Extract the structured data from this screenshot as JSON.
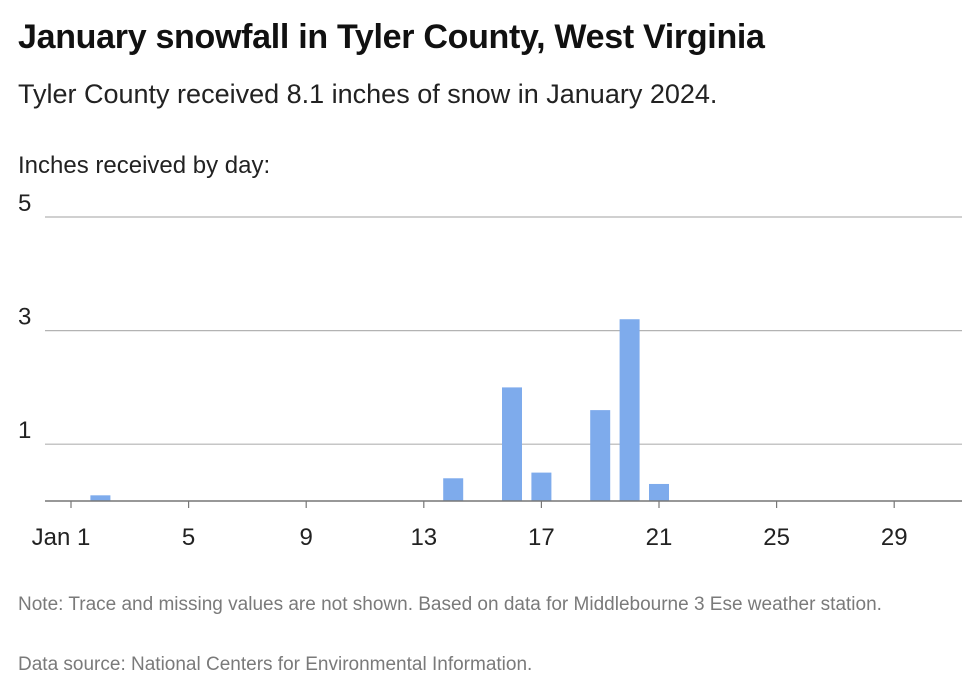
{
  "title": "January snowfall in Tyler County, West Virginia",
  "subtitle": "Tyler County received 8.1 inches of snow in January 2024.",
  "note": "Note: Trace and missing values are not shown. Based on data for Middlebourne 3 Ese weather station.",
  "source": "Data source: National Centers for Environmental Information.",
  "colors": {
    "bar": "#7eabec",
    "grid": "#b3b3b3",
    "axis": "#777777"
  },
  "chart_data": {
    "type": "bar",
    "title": "January snowfall in Tyler County, West Virginia",
    "ylabel": "Inches received by day:",
    "ylim": [
      0,
      5
    ],
    "yticks": [
      1,
      3,
      5
    ],
    "xticks": [
      {
        "day": 1,
        "label": "Jan 1"
      },
      {
        "day": 5,
        "label": "5"
      },
      {
        "day": 9,
        "label": "9"
      },
      {
        "day": 13,
        "label": "13"
      },
      {
        "day": 17,
        "label": "17"
      },
      {
        "day": 21,
        "label": "21"
      },
      {
        "day": 25,
        "label": "25"
      },
      {
        "day": 29,
        "label": "29"
      }
    ],
    "x": [
      2,
      14,
      16,
      17,
      19,
      20,
      21
    ],
    "values": [
      0.1,
      0.4,
      2.0,
      0.5,
      1.6,
      3.2,
      0.3
    ],
    "grid": true
  }
}
